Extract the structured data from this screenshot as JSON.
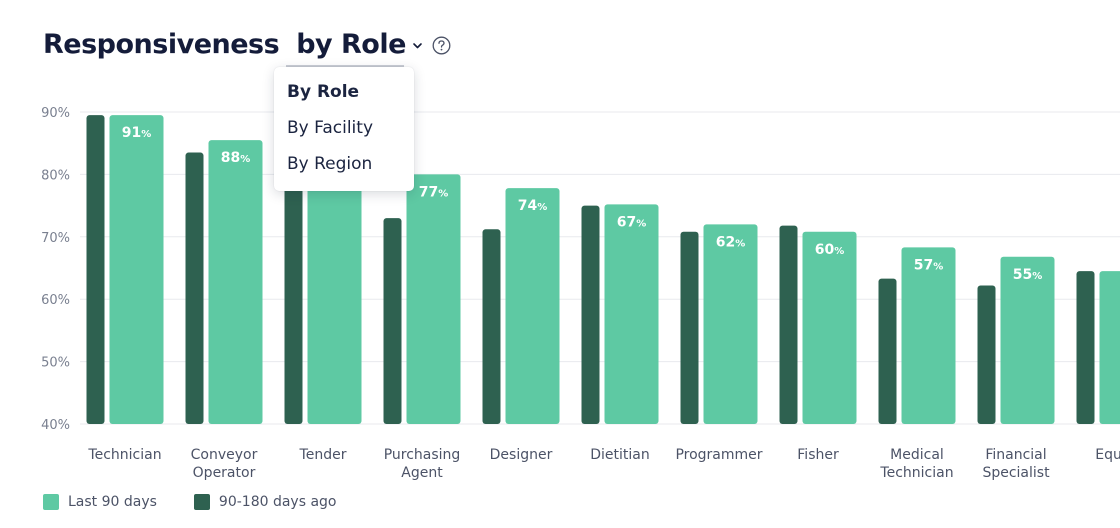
{
  "header": {
    "title": "Responsiveness",
    "selector_label": "by Role",
    "chevron_icon": "chevron-down-icon",
    "help_icon": "question-circle-icon"
  },
  "dropdown": {
    "items": [
      {
        "label": "By Role",
        "selected": true
      },
      {
        "label": "By Facility",
        "selected": false
      },
      {
        "label": "By Region",
        "selected": false
      }
    ]
  },
  "legend": {
    "items": [
      {
        "label": "Last 90 days",
        "color": "#5ec9a3"
      },
      {
        "label": "90-180 days ago",
        "color": "#2e6150"
      }
    ]
  },
  "colors": {
    "last90": "#5ec9a3",
    "prior": "#2e6150",
    "grid": "#e8eaee",
    "tick_text": "#7a8090",
    "category_text": "#4c5367",
    "bar_label": "#ffffff"
  },
  "chart_data": {
    "type": "bar",
    "ylim": [
      40,
      90
    ],
    "y_ticks": [
      {
        "value": 90,
        "label": "90%"
      },
      {
        "value": 80,
        "label": "80%"
      },
      {
        "value": 70,
        "label": "70%"
      },
      {
        "value": 60,
        "label": "60%"
      },
      {
        "value": 50,
        "label": "50%"
      },
      {
        "value": 40,
        "label": "40%"
      }
    ],
    "value_suffix": "%",
    "grid": true,
    "legend_position": "bottom-left",
    "categories": [
      [
        "Technician"
      ],
      [
        "Conveyor",
        "Operator"
      ],
      [
        "Tender"
      ],
      [
        "Purchasing",
        "Agent"
      ],
      [
        "Designer"
      ],
      [
        "Dietitian"
      ],
      [
        "Programmer"
      ],
      [
        "Fisher"
      ],
      [
        "Medical",
        "Technician"
      ],
      [
        "Financial",
        "Specialist"
      ],
      [
        "Equip"
      ]
    ],
    "series": [
      {
        "name": "90-180 days ago",
        "values": [
          89.5,
          83.5,
          80.5,
          73,
          71.2,
          75,
          70.8,
          71.8,
          63.3,
          62.2,
          64.5
        ]
      },
      {
        "name": "Last 90 days",
        "values": [
          89.5,
          85.5,
          82,
          80,
          77.8,
          75.2,
          72,
          70.8,
          68.3,
          66.8,
          64.5
        ],
        "labels": [
          "91",
          "88",
          "",
          "77",
          "74",
          "67",
          "62",
          "60",
          "57",
          "55",
          ""
        ]
      }
    ]
  }
}
